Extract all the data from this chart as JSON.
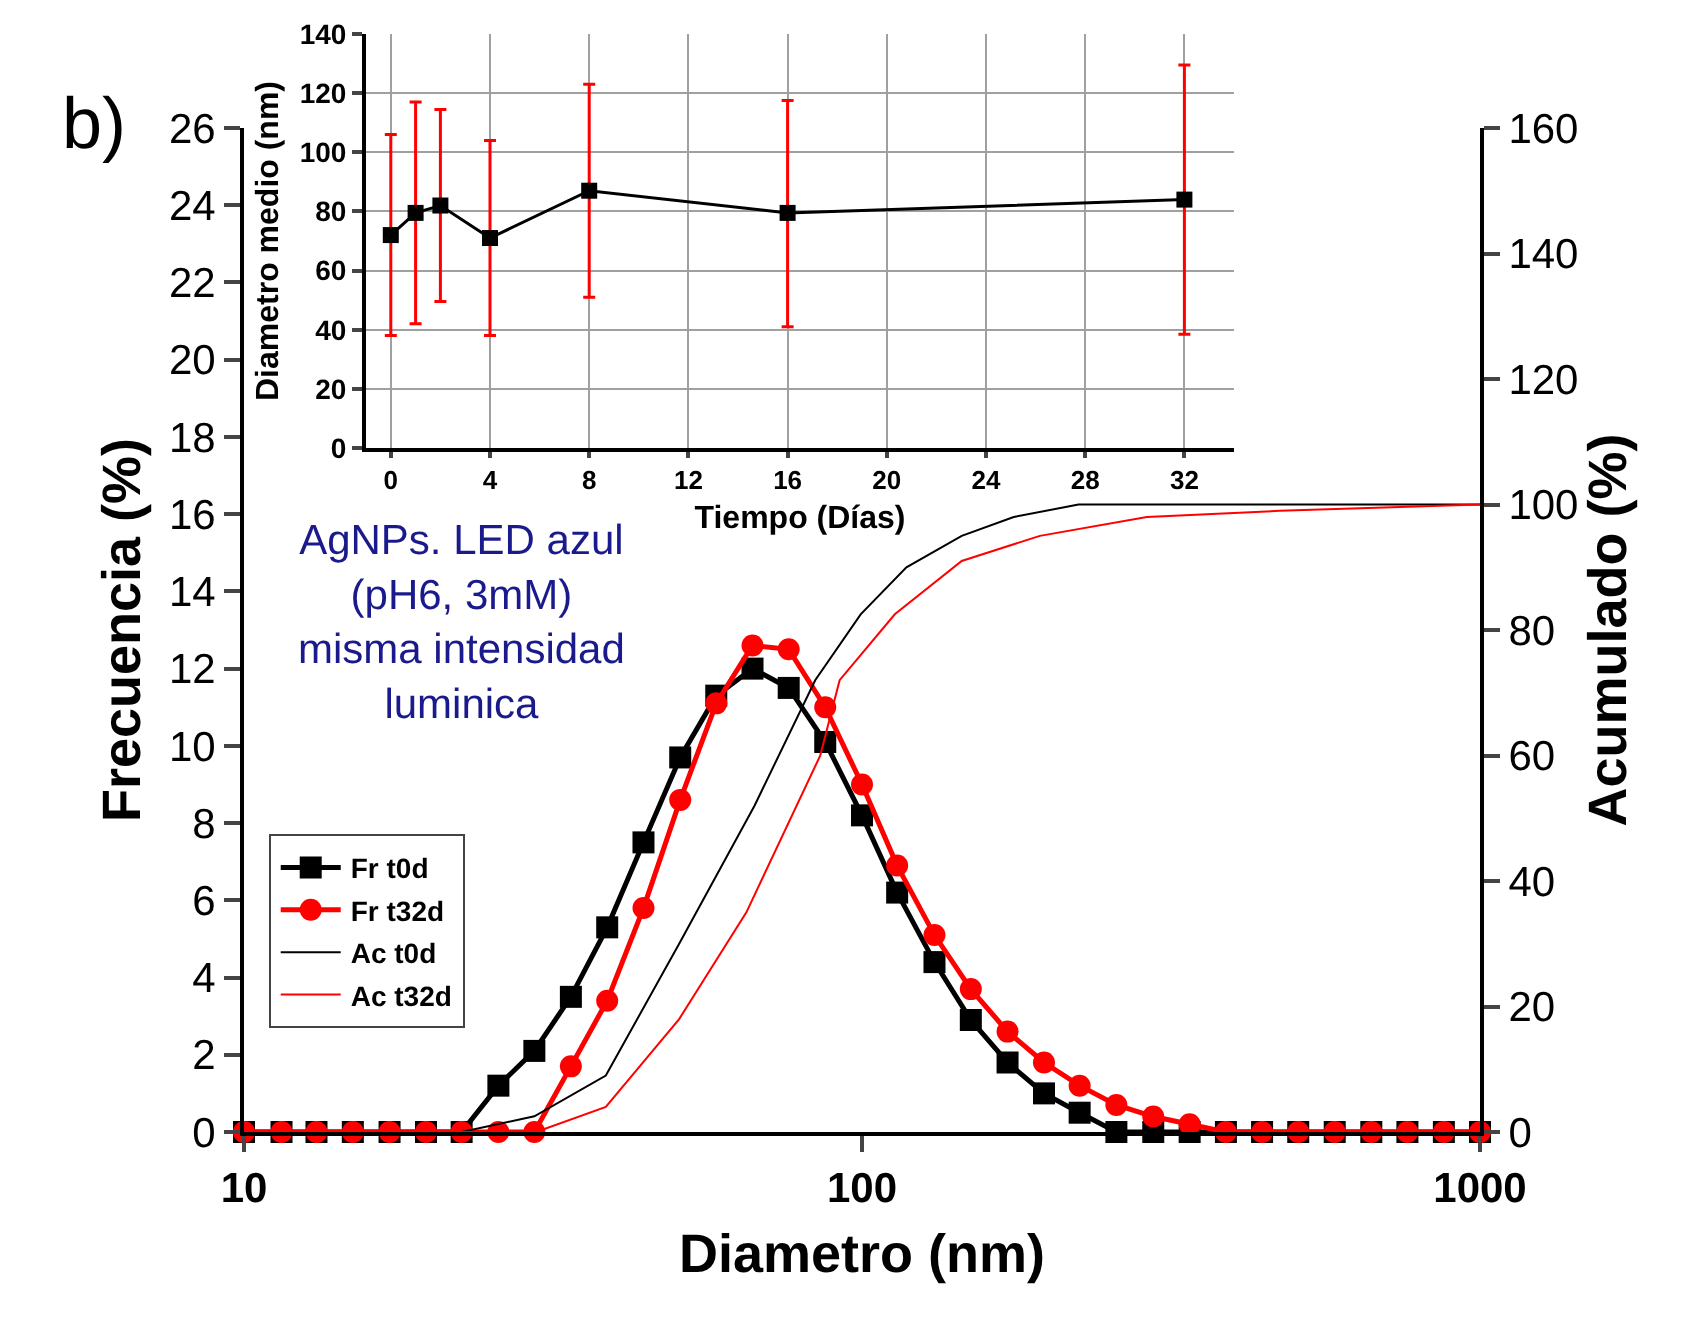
{
  "chart_data": [
    {
      "type": "line",
      "xlabel": "Diametro (nm)",
      "ylabel": "Frecuencia (%)",
      "y2label": "Acumulado (%)",
      "log": "x",
      "xlim": [
        10,
        1000
      ],
      "xticks": [
        10,
        100,
        1000
      ],
      "ylim": [
        0,
        26
      ],
      "yticks": [
        0,
        2,
        4,
        6,
        8,
        10,
        12,
        14,
        16,
        18,
        20,
        22,
        24,
        26
      ],
      "y2lim": [
        0,
        160
      ],
      "y2ticks": [
        0,
        20,
        40,
        60,
        80,
        100,
        120,
        140,
        160
      ],
      "grid": false,
      "legend": "left",
      "annotations": [
        "b)",
        "AgNPs. LED azul\n(pH6, 3mM)\nmisma intensidad\nluminica"
      ],
      "x": [
        10,
        11.5,
        13.1,
        15.0,
        17.2,
        19.7,
        22.5,
        25.8,
        29.5,
        33.8,
        38.7,
        44.3,
        50.8,
        58.1,
        66.5,
        76.1,
        87.2,
        100,
        114,
        131,
        150,
        172,
        197,
        225,
        258,
        296,
        339,
        388,
        444,
        508,
        582,
        667,
        763,
        874,
        1000
      ],
      "series": [
        {
          "name": "Fr t0d",
          "color": "#000000",
          "marker": "square",
          "values": [
            0,
            0,
            0,
            0,
            0,
            0,
            0,
            1.2,
            2.1,
            3.5,
            5.3,
            7.5,
            9.7,
            11.3,
            12.0,
            11.5,
            10.1,
            8.2,
            6.2,
            4.4,
            2.9,
            1.8,
            1.0,
            0.5,
            0,
            0,
            0,
            0,
            0,
            0,
            0,
            0,
            0,
            0,
            0
          ]
        },
        {
          "name": "Fr t32d",
          "color": "#ff0000",
          "marker": "circle",
          "values": [
            0,
            0,
            0,
            0,
            0,
            0,
            0,
            0,
            0,
            1.7,
            3.4,
            5.8,
            8.6,
            11.1,
            12.6,
            12.5,
            11.0,
            9.0,
            6.9,
            5.1,
            3.7,
            2.6,
            1.8,
            1.2,
            0.7,
            0.4,
            0.2,
            0,
            0,
            0,
            0,
            0,
            0,
            0,
            0
          ]
        },
        {
          "name": "Ac t0d",
          "color": "#000000",
          "marker": "none",
          "axis": "y2",
          "x": [
            10,
            22.5,
            29.5,
            38.5,
            50.6,
            67,
            84,
            99.5,
            118,
            145,
            176,
            224,
            1000
          ],
          "values": [
            0,
            0,
            2.5,
            9,
            30,
            52,
            72,
            82.5,
            90,
            95,
            98,
            100,
            100
          ]
        },
        {
          "name": "Ac t32d",
          "color": "#ff0000",
          "marker": "none",
          "axis": "y2",
          "x": [
            10,
            29.7,
            38.5,
            50.6,
            65,
            85.6,
            92,
            113,
            145,
            194,
            289,
            474,
            1000
          ],
          "values": [
            0,
            0,
            4,
            18,
            35,
            60,
            72,
            82.5,
            91,
            95,
            98,
            99,
            100
          ]
        }
      ]
    },
    {
      "type": "line",
      "xlabel": "Tiempo (Días)",
      "ylabel": "Diametro medio (nm)",
      "xlim": [
        -1,
        34
      ],
      "xticks": [
        0,
        4,
        8,
        12,
        16,
        20,
        24,
        28,
        32
      ],
      "ylim": [
        0,
        140
      ],
      "yticks": [
        0,
        20,
        40,
        60,
        80,
        100,
        120,
        140
      ],
      "grid": true,
      "legend": false,
      "marker": "square",
      "x": [
        0,
        1,
        2,
        4,
        8,
        16,
        32
      ],
      "series": [
        {
          "color": "#000000",
          "values": [
            72,
            79.5,
            82,
            71,
            87,
            79.5,
            84
          ],
          "errors": [
            [
              38,
              106
            ],
            [
              42,
              117
            ],
            [
              49.5,
              114.5
            ],
            [
              38,
              104
            ],
            [
              51,
              123
            ],
            [
              41,
              117.5
            ],
            [
              38.5,
              129.5
            ]
          ]
        }
      ]
    }
  ]
}
